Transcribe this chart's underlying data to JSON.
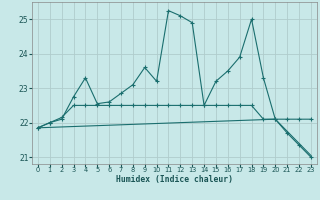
{
  "xlabel": "Humidex (Indice chaleur)",
  "bg_color": "#c8e8e8",
  "grid_color": "#b0cccc",
  "line_color": "#1a6e6e",
  "ylim": [
    20.8,
    25.5
  ],
  "yticks": [
    21,
    22,
    23,
    24,
    25
  ],
  "xlim": [
    -0.5,
    23.5
  ],
  "x_ticks": [
    0,
    1,
    2,
    3,
    4,
    5,
    6,
    7,
    8,
    9,
    10,
    11,
    12,
    13,
    14,
    15,
    16,
    17,
    18,
    19,
    20,
    21,
    22,
    23
  ],
  "series1_x": [
    0,
    1,
    2,
    3,
    4,
    5,
    6,
    7,
    8,
    9,
    10,
    11,
    12,
    13,
    14,
    15,
    16,
    17,
    18,
    19,
    20,
    21,
    22,
    23
  ],
  "series1_y": [
    21.85,
    22.0,
    22.1,
    22.75,
    23.3,
    22.55,
    22.6,
    22.85,
    23.1,
    23.6,
    23.2,
    25.25,
    25.1,
    24.9,
    22.5,
    23.2,
    23.5,
    23.9,
    25.0,
    23.3,
    22.1,
    21.7,
    21.35,
    21.0
  ],
  "series2_x": [
    0,
    1,
    2,
    3,
    4,
    5,
    6,
    7,
    8,
    9,
    10,
    11,
    12,
    13,
    14,
    15,
    16,
    17,
    18,
    19,
    20,
    21,
    22,
    23
  ],
  "series2_y": [
    21.85,
    22.0,
    22.15,
    22.5,
    22.5,
    22.5,
    22.5,
    22.5,
    22.5,
    22.5,
    22.5,
    22.5,
    22.5,
    22.5,
    22.5,
    22.5,
    22.5,
    22.5,
    22.5,
    22.1,
    22.1,
    22.1,
    22.1,
    22.1
  ],
  "series3_x": [
    0,
    20,
    23
  ],
  "series3_y": [
    21.85,
    22.1,
    21.05
  ],
  "marker_style": "+",
  "marker_size": 3.5,
  "linewidth": 0.8
}
